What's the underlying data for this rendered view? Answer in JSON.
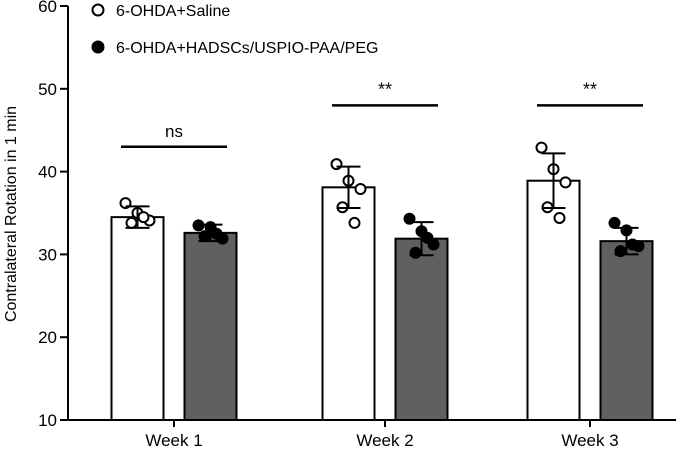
{
  "chart_data": {
    "type": "bar",
    "title": "",
    "xlabel": "",
    "ylabel": "Contralateral Rotation in 1 min",
    "ylim": [
      10,
      60
    ],
    "yticks": [
      10,
      20,
      30,
      40,
      50,
      60
    ],
    "categories": [
      "Week 1",
      "Week 2",
      "Week 3"
    ],
    "legend_position": "top-left",
    "grid": false,
    "series": [
      {
        "name": "6-OHDA+Saline",
        "fill": "#ffffff",
        "marker": "open-circle",
        "values": [
          34.5,
          38.1,
          38.9
        ],
        "error": [
          1.3,
          2.5,
          3.3
        ],
        "points": [
          [
            36.2,
            35.0,
            34.1,
            33.8,
            34.5
          ],
          [
            40.9,
            38.9,
            37.9,
            35.7,
            33.8
          ],
          [
            42.9,
            40.3,
            38.7,
            35.7,
            34.4
          ]
        ]
      },
      {
        "name": "6-OHDA+HADSCs/USPIO-PAA/PEG",
        "fill": "#606060",
        "marker": "filled-circle",
        "values": [
          32.6,
          31.9,
          31.6
        ],
        "error": [
          1.0,
          2.0,
          1.6
        ],
        "points": [
          [
            33.5,
            33.3,
            31.9,
            32.2,
            32.5
          ],
          [
            34.3,
            32.8,
            31.2,
            30.2,
            32.0
          ],
          [
            33.8,
            32.9,
            31.0,
            30.4,
            31.2
          ]
        ]
      }
    ],
    "comparisons": [
      {
        "category": "Week 1",
        "label": "ns",
        "y": 43.0
      },
      {
        "category": "Week 2",
        "label": "**",
        "y": 48.0
      },
      {
        "category": "Week 3",
        "label": "**",
        "y": 48.0
      }
    ]
  }
}
